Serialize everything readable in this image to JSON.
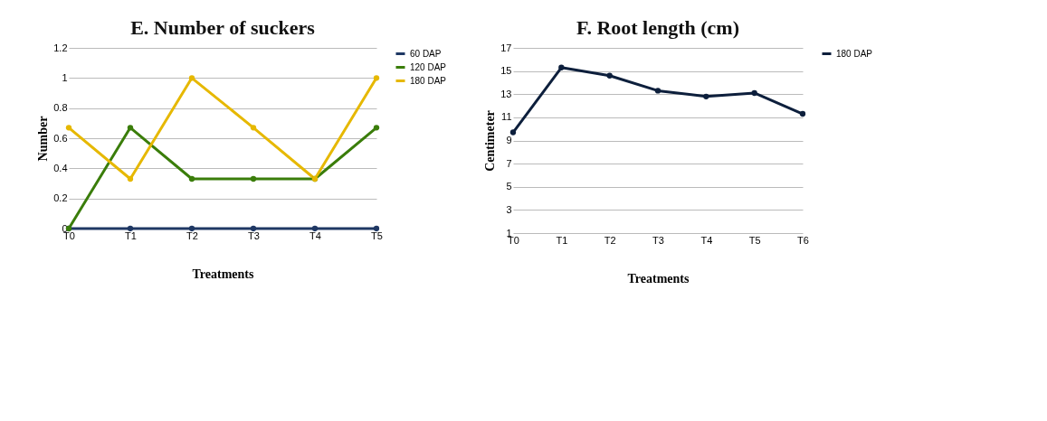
{
  "chart_data": [
    {
      "type": "line",
      "title": "E. Number of suckers",
      "xlabel": "Treatments",
      "ylabel": "Number",
      "categories": [
        "T0",
        "T1",
        "T2",
        "T3",
        "T4",
        "T5"
      ],
      "series": [
        {
          "name": "60 DAP",
          "color": "#1f3864",
          "values": [
            0,
            0,
            0,
            0,
            0,
            0
          ]
        },
        {
          "name": "120 DAP",
          "color": "#3a7d0a",
          "values": [
            0,
            0.67,
            0.33,
            0.33,
            0.33,
            0.67
          ]
        },
        {
          "name": "180 DAP",
          "color": "#e6b800",
          "values": [
            0.67,
            0.33,
            1,
            0.67,
            0.33,
            1
          ]
        }
      ],
      "ylim": [
        0,
        1.2
      ],
      "yticks": [
        0,
        0.2,
        0.4,
        0.6,
        0.8,
        1,
        1.2
      ],
      "grid": "y",
      "legend": "top right",
      "marker": "circle"
    },
    {
      "type": "line",
      "title": "F. Root length (cm)",
      "xlabel": "Treatments",
      "ylabel": "Centimeter",
      "categories": [
        "T0",
        "T1",
        "T2",
        "T3",
        "T4",
        "T5",
        "T6"
      ],
      "series": [
        {
          "name": "180 DAP",
          "color": "#0d1f3c",
          "values": [
            9.7,
            15.3,
            14.6,
            13.3,
            12.8,
            13.1,
            11.3
          ]
        }
      ],
      "ylim": [
        1,
        17
      ],
      "yticks": [
        1,
        3,
        5,
        7,
        9,
        11,
        13,
        15,
        17
      ],
      "grid": "y",
      "legend": "top right",
      "marker": "circle"
    }
  ]
}
